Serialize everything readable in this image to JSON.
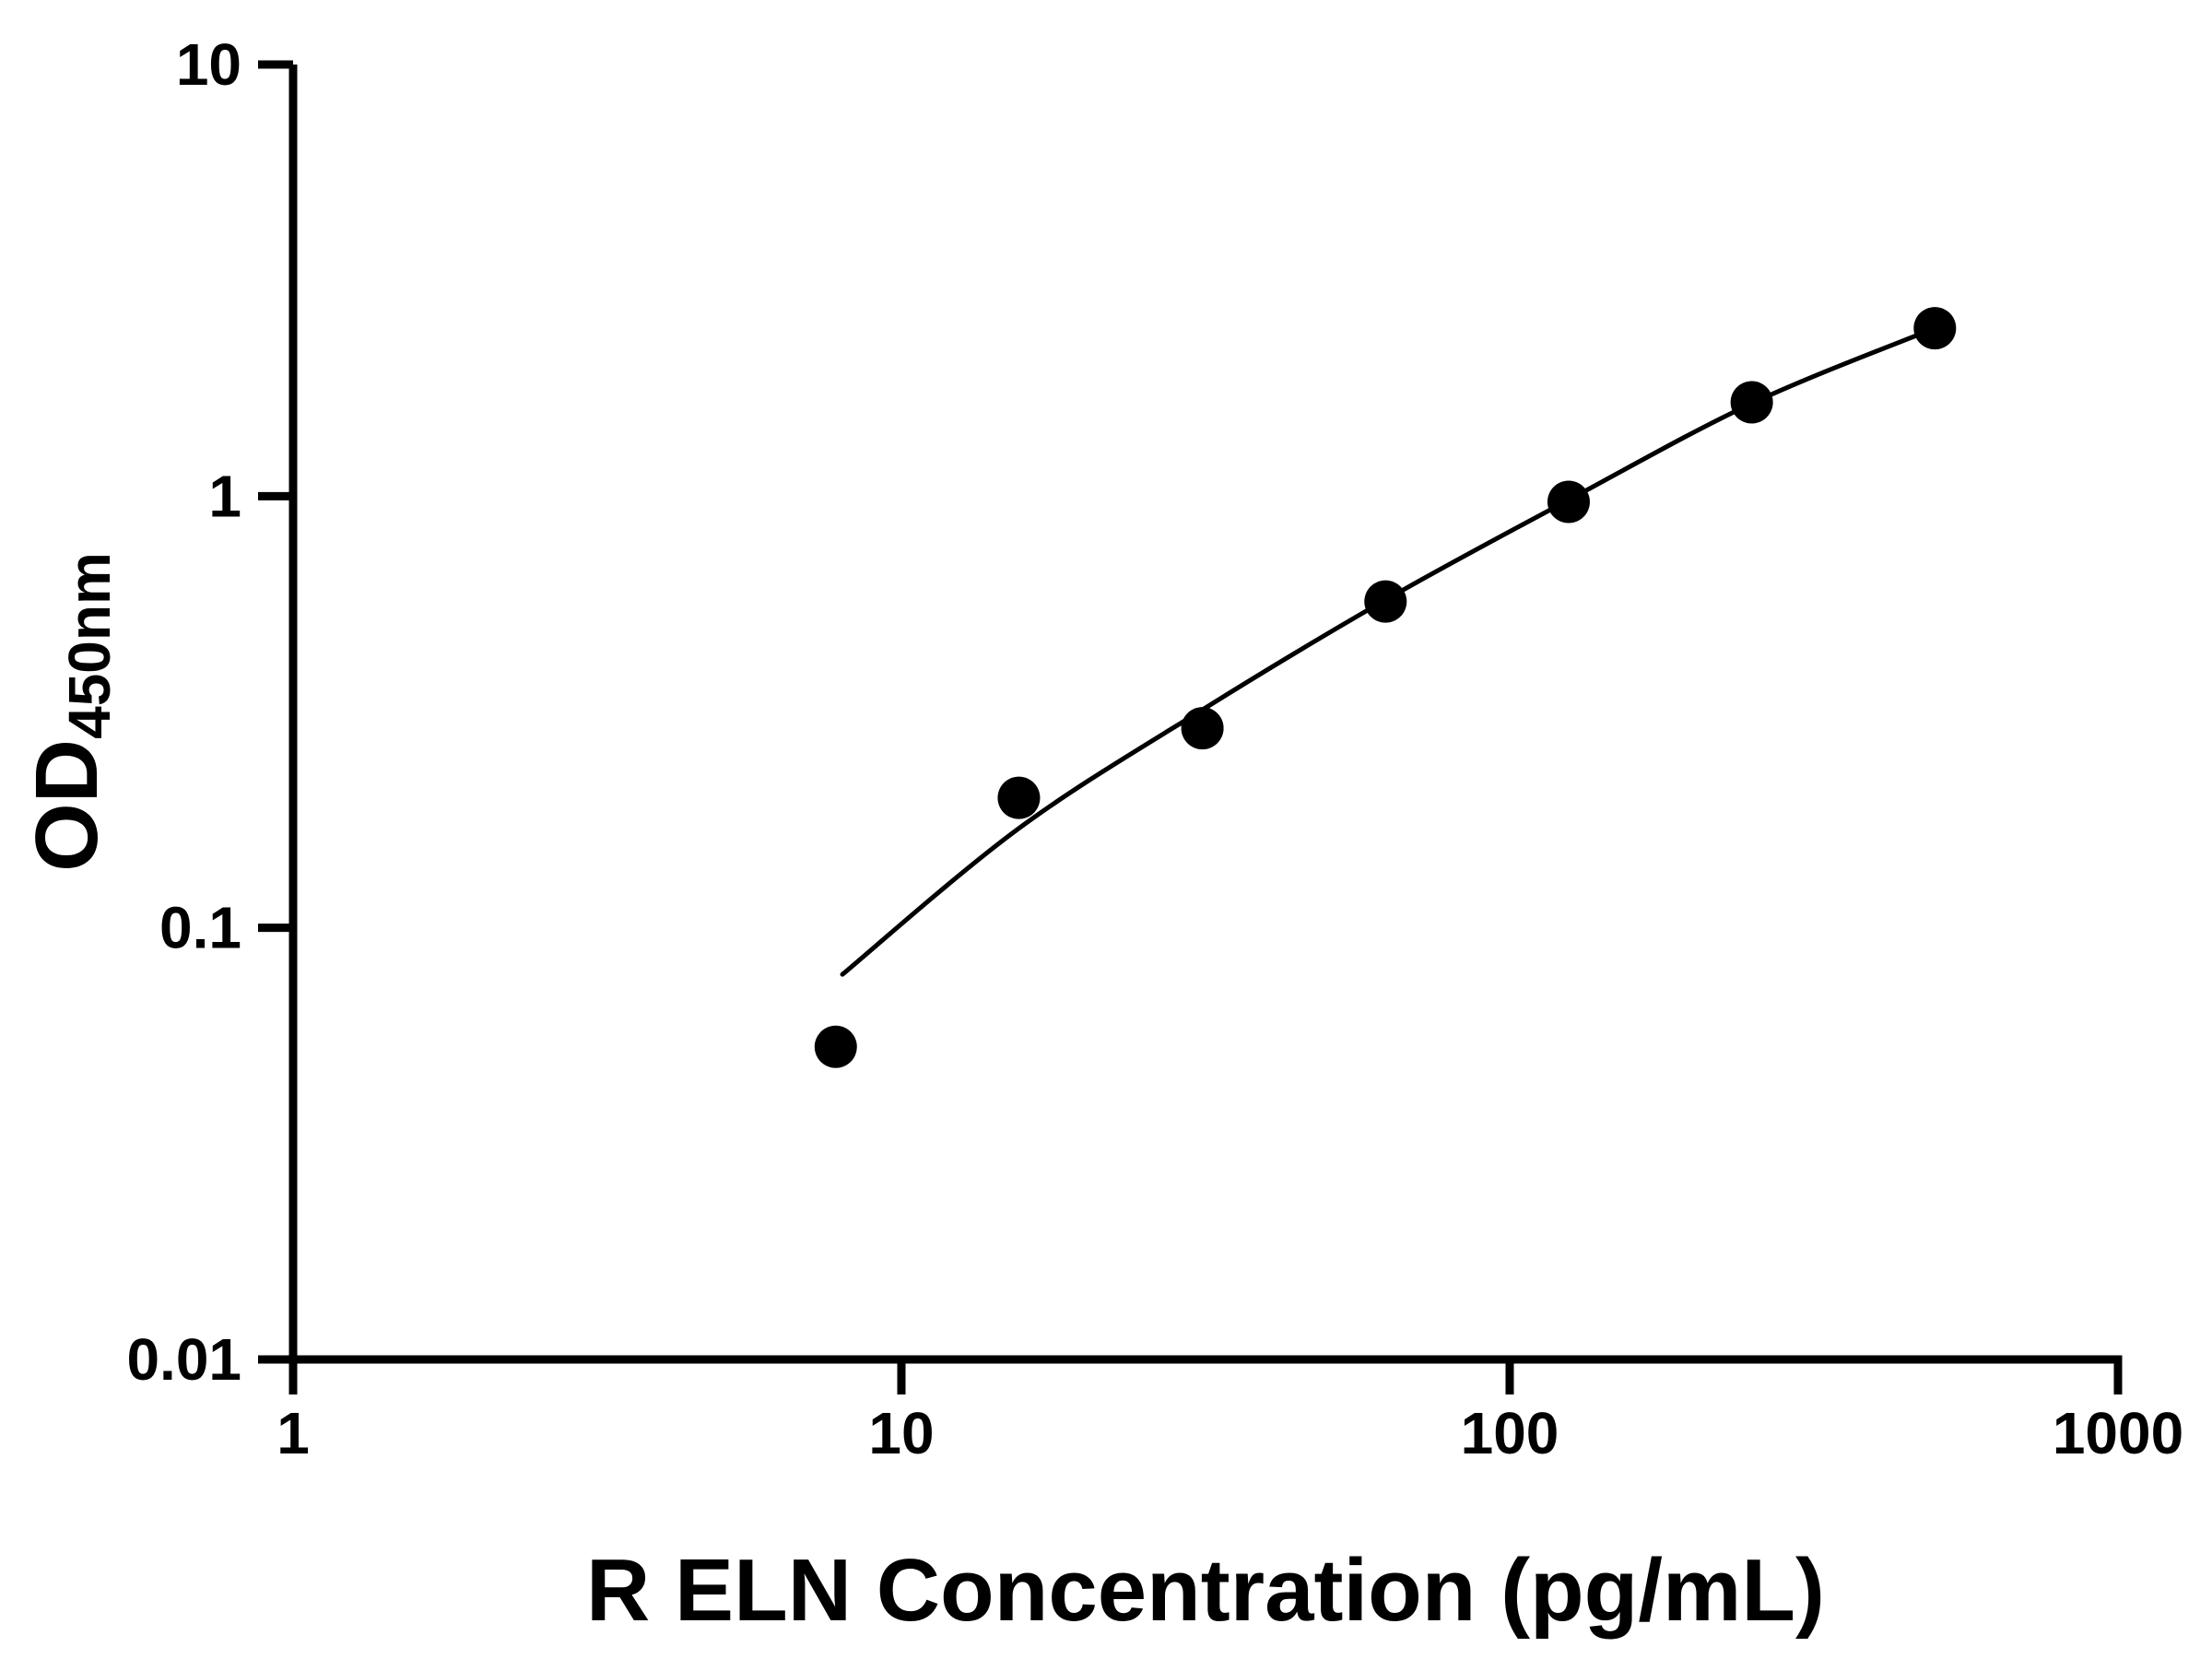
{
  "chart": {
    "xlabel": "R ELN Concentration (pg/mL)",
    "ylabel_main": "OD",
    "ylabel_sub": "450nm"
  },
  "chart_data": {
    "type": "scatter",
    "title": "",
    "xlabel": "R ELN Concentration (pg/mL)",
    "ylabel": "OD450nm",
    "ylabel_main": "OD",
    "ylabel_sub": "450nm",
    "x_scale": "log",
    "y_scale": "log",
    "xlim": [
      1,
      1000
    ],
    "ylim": [
      0.01,
      10
    ],
    "grid": false,
    "legend": false,
    "background": "#ffffff",
    "marker_color": "#000000",
    "line_color": "#000000",
    "x_ticks": [
      {
        "value": 1,
        "label": "1"
      },
      {
        "value": 10,
        "label": "10"
      },
      {
        "value": 100,
        "label": "100"
      },
      {
        "value": 1000,
        "label": "1000"
      }
    ],
    "y_ticks": [
      {
        "value": 0.01,
        "label": "0.01"
      },
      {
        "value": 0.1,
        "label": "0.1"
      },
      {
        "value": 1,
        "label": "1"
      },
      {
        "value": 10,
        "label": "10"
      }
    ],
    "points": [
      {
        "x": 7.8,
        "y": 0.053
      },
      {
        "x": 15.6,
        "y": 0.2
      },
      {
        "x": 31.25,
        "y": 0.29
      },
      {
        "x": 62.5,
        "y": 0.57
      },
      {
        "x": 125,
        "y": 0.97
      },
      {
        "x": 250,
        "y": 1.65
      },
      {
        "x": 500,
        "y": 2.45
      }
    ],
    "fit_line": [
      {
        "x": 8,
        "y": 0.078
      },
      {
        "x": 15.6,
        "y": 0.17
      },
      {
        "x": 31.25,
        "y": 0.32
      },
      {
        "x": 62.5,
        "y": 0.575
      },
      {
        "x": 125,
        "y": 0.98
      },
      {
        "x": 250,
        "y": 1.64
      },
      {
        "x": 500,
        "y": 2.45
      }
    ]
  }
}
